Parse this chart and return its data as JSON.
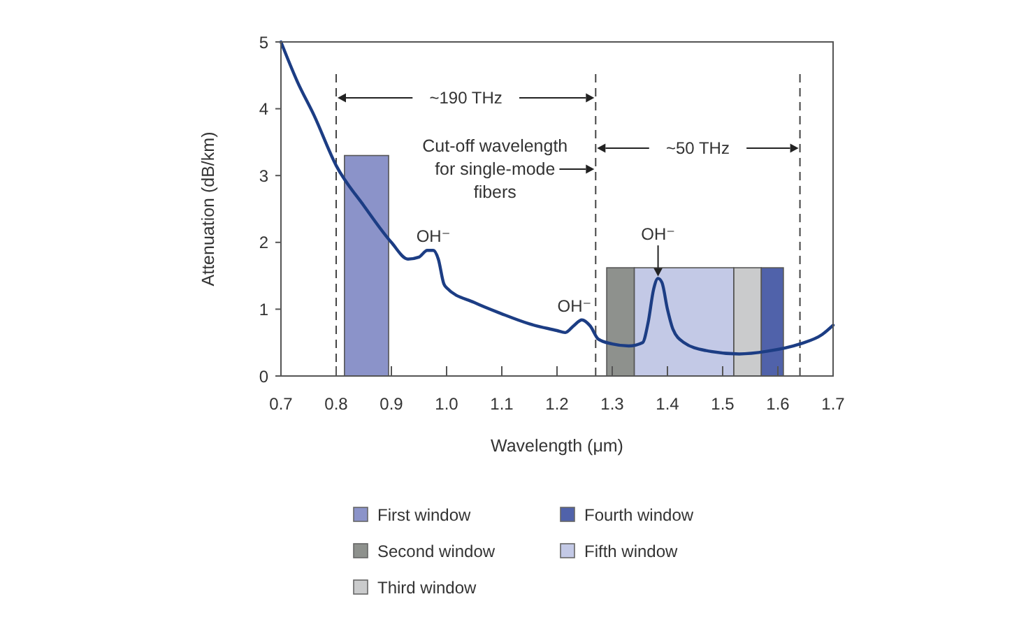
{
  "chart_data": {
    "type": "line",
    "xlabel": "Wavelength (μm)",
    "ylabel": "Attenuation (dB/km)",
    "xlim": [
      0.7,
      1.7
    ],
    "xticks": [
      0.7,
      0.8,
      0.9,
      {
        "value": 1,
        "label": "1.0"
      },
      1.1,
      1.2,
      1.3,
      1.4,
      1.5,
      1.6,
      1.7
    ],
    "ylim": [
      0,
      5
    ],
    "yticks": [
      0,
      1,
      2,
      3,
      4,
      5
    ],
    "series": [
      {
        "color": "#1c3d84",
        "x": [
          0.7,
          0.73,
          0.76,
          0.8,
          0.85,
          0.9,
          0.93,
          0.95,
          0.965,
          0.976,
          0.985,
          0.995,
          1.0,
          1.05,
          1.1,
          1.15,
          1.2,
          1.215,
          1.23,
          1.245,
          1.26,
          1.275,
          1.3,
          1.33,
          1.355,
          1.365,
          1.375,
          1.383,
          1.39,
          1.4,
          1.41,
          1.43,
          1.47,
          1.53,
          1.58,
          1.64,
          1.68,
          1.7
        ],
        "values": [
          5.0,
          4.4,
          3.9,
          3.15,
          2.55,
          2.0,
          1.75,
          1.78,
          1.88,
          1.88,
          1.75,
          1.38,
          1.32,
          1.1,
          0.93,
          0.78,
          0.68,
          0.65,
          0.75,
          0.84,
          0.75,
          0.55,
          0.48,
          0.45,
          0.5,
          0.8,
          1.3,
          1.46,
          1.4,
          1.0,
          0.7,
          0.5,
          0.38,
          0.33,
          0.37,
          0.48,
          0.62,
          0.76
        ]
      },
      {
        "name": "First window",
        "type": "histogram",
        "color": "#8b93c9",
        "bins": [
          0.815,
          0.895
        ],
        "values": [
          3.3
        ]
      },
      {
        "name": "Second window",
        "type": "histogram",
        "color": "#8e918d",
        "bins": [
          1.29,
          1.34
        ],
        "values": [
          1.62
        ]
      },
      {
        "name": "Third window",
        "type": "histogram",
        "color": "#cacbcc",
        "bins": [
          1.52,
          1.57
        ],
        "values": [
          1.62
        ]
      },
      {
        "name": "Fourth window",
        "type": "histogram",
        "color": "#5062aa",
        "bins": [
          1.57,
          1.61
        ],
        "values": [
          1.62
        ]
      },
      {
        "name": "Fifth window",
        "type": "histogram",
        "color": "#c3c9e6",
        "bins": [
          1.34,
          1.52
        ],
        "values": [
          1.62
        ]
      }
    ],
    "ref_lines": [
      {
        "axis": "x",
        "value": 0.8,
        "line_style": "dashed",
        "color": "#444444"
      },
      {
        "axis": "x",
        "value": 1.27,
        "line_style": "dashed",
        "color": "#444444",
        "label": "Cut-off wavelength for single-mode fibers"
      },
      {
        "axis": "x",
        "value": 1.64,
        "line_style": "dashed",
        "color": "#444444"
      }
    ],
    "annotations": [
      "~190 THz",
      "~50 THz",
      {
        "text": "OH⁻",
        "x": 0.976,
        "y": 1.88
      },
      {
        "text": "OH⁻",
        "x": 1.245,
        "y": 0.84
      },
      {
        "text": "OH⁻",
        "x": 1.383,
        "y": 1.46
      }
    ],
    "legend": "bottom"
  }
}
